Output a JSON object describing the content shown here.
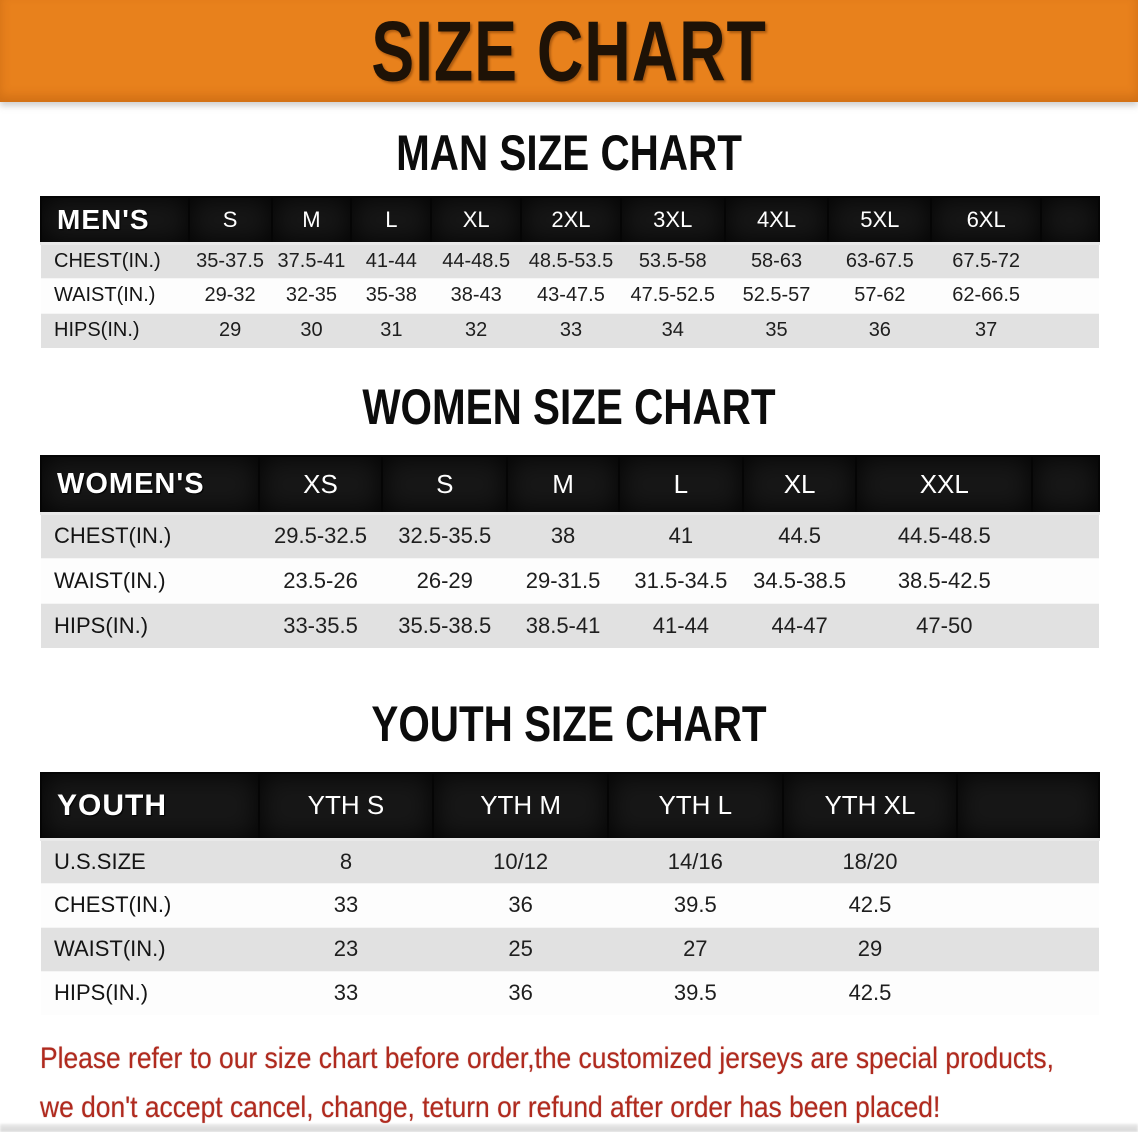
{
  "banner": {
    "title": "SIZE CHART",
    "bg_color": "#e8811c",
    "text_color": "#1e1206"
  },
  "sections": {
    "men": {
      "heading": "MAN SIZE CHART",
      "header_label": "MEN'S",
      "sizes": [
        "S",
        "M",
        "L",
        "XL",
        "2XL",
        "3XL",
        "4XL",
        "5XL",
        "6XL"
      ],
      "rows": [
        {
          "label": "CHEST(IN.)",
          "values": [
            "35-37.5",
            "37.5-41",
            "41-44",
            "44-48.5",
            "48.5-53.5",
            "53.5-58",
            "58-63",
            "63-67.5",
            "67.5-72"
          ]
        },
        {
          "label": "WAIST(IN.)",
          "values": [
            "29-32",
            "32-35",
            "35-38",
            "38-43",
            "43-47.5",
            "47.5-52.5",
            "52.5-57",
            "57-62",
            "62-66.5"
          ]
        },
        {
          "label": "HIPS(IN.)",
          "values": [
            "29",
            "30",
            "31",
            "32",
            "33",
            "34",
            "35",
            "36",
            "37"
          ]
        }
      ]
    },
    "women": {
      "heading": "WOMEN SIZE CHART",
      "header_label": "WOMEN'S",
      "sizes": [
        "XS",
        "S",
        "M",
        "L",
        "XL",
        "XXL"
      ],
      "rows": [
        {
          "label": "CHEST(IN.)",
          "values": [
            "29.5-32.5",
            "32.5-35.5",
            "38",
            "41",
            "44.5",
            "44.5-48.5"
          ]
        },
        {
          "label": "WAIST(IN.)",
          "values": [
            "23.5-26",
            "26-29",
            "29-31.5",
            "31.5-34.5",
            "34.5-38.5",
            "38.5-42.5"
          ]
        },
        {
          "label": "HIPS(IN.)",
          "values": [
            "33-35.5",
            "35.5-38.5",
            "38.5-41",
            "41-44",
            "44-47",
            "47-50"
          ]
        }
      ]
    },
    "youth": {
      "heading": "YOUTH SIZE CHART",
      "header_label": "YOUTH",
      "sizes": [
        "YTH S",
        "YTH M",
        "YTH L",
        "YTH XL"
      ],
      "rows": [
        {
          "label": "U.S.SIZE",
          "values": [
            "8",
            "10/12",
            "14/16",
            "18/20"
          ]
        },
        {
          "label": "CHEST(IN.)",
          "values": [
            "33",
            "36",
            "39.5",
            "42.5"
          ]
        },
        {
          "label": "WAIST(IN.)",
          "values": [
            "23",
            "25",
            "27",
            "29"
          ]
        },
        {
          "label": "HIPS(IN.)",
          "values": [
            "33",
            "36",
            "39.5",
            "42.5"
          ]
        }
      ]
    }
  },
  "disclaimer": {
    "line1": "Please refer to our size chart before order,the customized jerseys are special products,",
    "line2": "we don't accept cancel, change, teturn or refund after order has been placed!",
    "color": "#b02a1e"
  }
}
